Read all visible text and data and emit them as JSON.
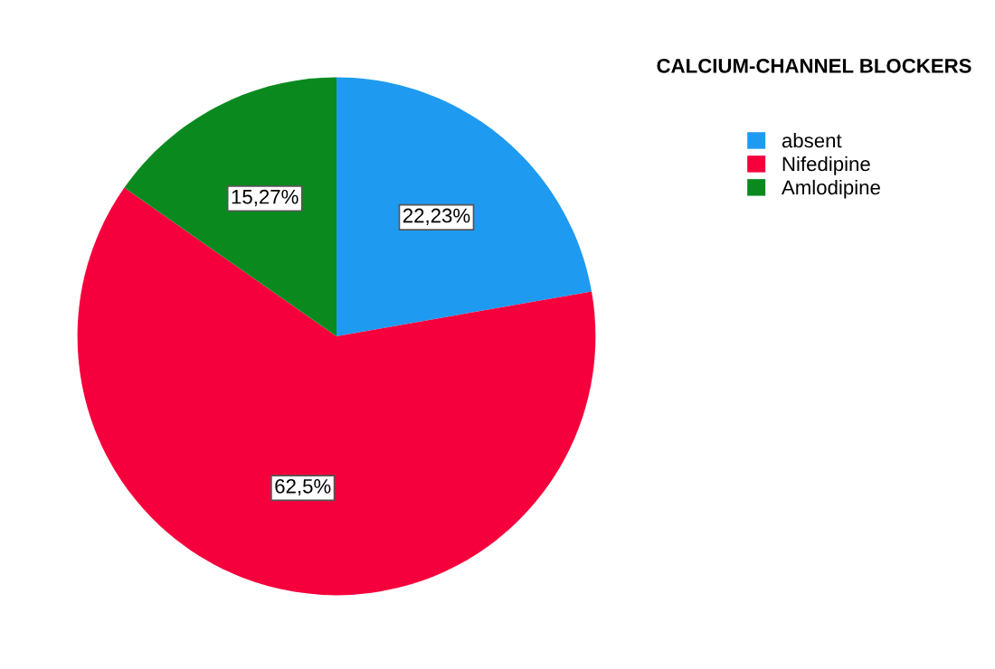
{
  "chart_data": {
    "type": "pie",
    "legend_title": "CALCIUM-CHANNEL BLOCKERS",
    "categories": [
      "absent",
      "Nifedipine",
      "Amlodipine"
    ],
    "values": [
      22.23,
      62.5,
      15.27
    ],
    "value_labels": [
      "22,23%",
      "62,5%",
      "15,27%"
    ],
    "colors": [
      "#1e9bf0",
      "#f5003c",
      "#0a8a1e"
    ],
    "legend": "top right"
  }
}
